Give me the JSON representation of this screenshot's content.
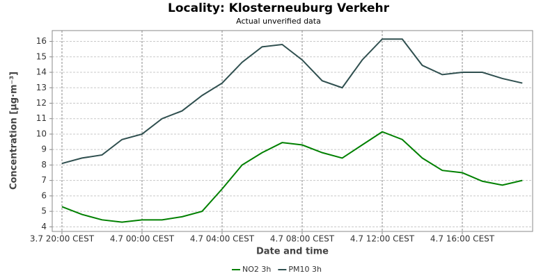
{
  "chart_data": {
    "type": "line",
    "title": "Locality: Klosterneuburg Verkehr",
    "subtitle": "Actual unverified data",
    "x_label": "Date and time",
    "y_label": "Concentration [µg·m⁻³]",
    "categories": [
      "3.7 20:00 CEST",
      null,
      null,
      null,
      "4.7 00:00 CEST",
      null,
      null,
      null,
      "4.7 04:00 CEST",
      null,
      null,
      null,
      "4.7 08:00 CEST",
      null,
      null,
      null,
      "4.7 12:00 CEST",
      null,
      null,
      null,
      "4.7 16:00 CEST",
      null,
      null,
      null
    ],
    "series": [
      {
        "name": "NO2 3h",
        "color": "#008000",
        "values": [
          5.3,
          4.8,
          4.45,
          4.3,
          4.45,
          4.45,
          4.65,
          5.0,
          6.45,
          8.0,
          8.8,
          9.45,
          9.3,
          8.8,
          8.45,
          9.3,
          10.15,
          9.65,
          8.45,
          7.65,
          7.5,
          6.95,
          6.7,
          7.0
        ]
      },
      {
        "name": "PM10 3h",
        "color": "#2f4f4f",
        "values": [
          8.1,
          8.45,
          8.65,
          9.65,
          10.0,
          11.0,
          11.5,
          12.5,
          13.3,
          14.65,
          15.65,
          15.8,
          14.8,
          13.45,
          13.0,
          14.8,
          16.15,
          16.15,
          14.45,
          13.85,
          14.0,
          14.0,
          13.6,
          13.3
        ]
      }
    ],
    "ylim": [
      3.7,
      16.7
    ],
    "yticks": [
      4,
      5,
      6,
      7,
      8,
      9,
      10,
      11,
      12,
      13,
      14,
      15,
      16
    ],
    "grid": true,
    "legend": "bottom"
  }
}
